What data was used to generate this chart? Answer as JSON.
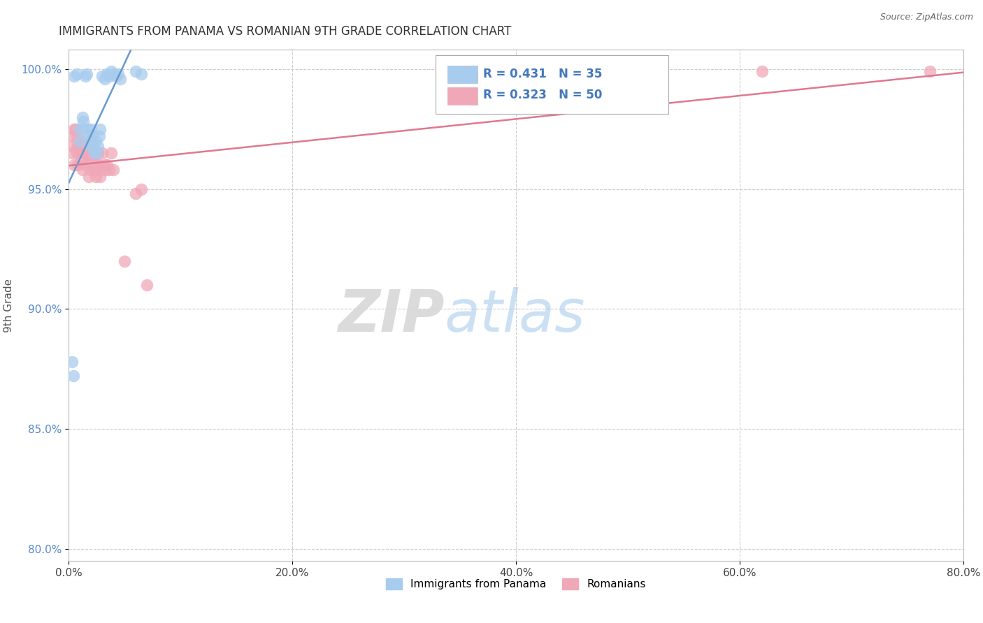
{
  "title": "IMMIGRANTS FROM PANAMA VS ROMANIAN 9TH GRADE CORRELATION CHART",
  "source_text": "Source: ZipAtlas.com",
  "ylabel": "9th Grade",
  "xlim": [
    0.0,
    0.8
  ],
  "ylim": [
    0.795,
    1.008
  ],
  "xtick_labels": [
    "0.0%",
    "20.0%",
    "40.0%",
    "60.0%",
    "80.0%"
  ],
  "xtick_vals": [
    0.0,
    0.2,
    0.4,
    0.6,
    0.8
  ],
  "ytick_labels": [
    "80.0%",
    "85.0%",
    "90.0%",
    "95.0%",
    "100.0%"
  ],
  "ytick_vals": [
    0.8,
    0.85,
    0.9,
    0.95,
    1.0
  ],
  "blue_color": "#a8ccee",
  "pink_color": "#f0a8b8",
  "blue_line_color": "#6699cc",
  "pink_line_color": "#e07890",
  "legend_r_blue": "R = 0.431",
  "legend_n_blue": "N = 35",
  "legend_r_pink": "R = 0.323",
  "legend_n_pink": "N = 50",
  "legend_label_blue": "Immigrants from Panama",
  "legend_label_pink": "Romanians",
  "watermark_zip": "ZIP",
  "watermark_atlas": "atlas",
  "blue_scatter_x": [
    0.005,
    0.007,
    0.01,
    0.01,
    0.012,
    0.013,
    0.014,
    0.015,
    0.016,
    0.017,
    0.018,
    0.019,
    0.02,
    0.02,
    0.021,
    0.022,
    0.023,
    0.024,
    0.025,
    0.026,
    0.027,
    0.028,
    0.03,
    0.032,
    0.034,
    0.036,
    0.038,
    0.04,
    0.042,
    0.044,
    0.003,
    0.004,
    0.046,
    0.06,
    0.065
  ],
  "blue_scatter_y": [
    0.997,
    0.998,
    0.97,
    0.975,
    0.98,
    0.978,
    0.975,
    0.997,
    0.998,
    0.975,
    0.972,
    0.968,
    0.97,
    0.975,
    0.972,
    0.968,
    0.965,
    0.97,
    0.965,
    0.968,
    0.972,
    0.975,
    0.997,
    0.996,
    0.998,
    0.997,
    0.999,
    0.998,
    0.997,
    0.998,
    0.878,
    0.872,
    0.996,
    0.999,
    0.998
  ],
  "pink_scatter_x": [
    0.002,
    0.003,
    0.004,
    0.005,
    0.006,
    0.007,
    0.008,
    0.008,
    0.009,
    0.01,
    0.011,
    0.012,
    0.013,
    0.014,
    0.015,
    0.016,
    0.017,
    0.018,
    0.019,
    0.02,
    0.021,
    0.022,
    0.023,
    0.024,
    0.025,
    0.026,
    0.027,
    0.028,
    0.03,
    0.032,
    0.034,
    0.036,
    0.038,
    0.04,
    0.05,
    0.06,
    0.065,
    0.07,
    0.005,
    0.007,
    0.009,
    0.012,
    0.015,
    0.018,
    0.02,
    0.025,
    0.028,
    0.032,
    0.62,
    0.77
  ],
  "pink_scatter_y": [
    0.968,
    0.965,
    0.972,
    0.96,
    0.975,
    0.965,
    0.968,
    0.96,
    0.965,
    0.97,
    0.962,
    0.958,
    0.965,
    0.96,
    0.968,
    0.965,
    0.96,
    0.955,
    0.958,
    0.962,
    0.96,
    0.962,
    0.958,
    0.955,
    0.96,
    0.965,
    0.958,
    0.96,
    0.965,
    0.958,
    0.96,
    0.958,
    0.965,
    0.958,
    0.92,
    0.948,
    0.95,
    0.91,
    0.975,
    0.972,
    0.968,
    0.97,
    0.965,
    0.962,
    0.97,
    0.958,
    0.955,
    0.96,
    0.999,
    0.999
  ]
}
